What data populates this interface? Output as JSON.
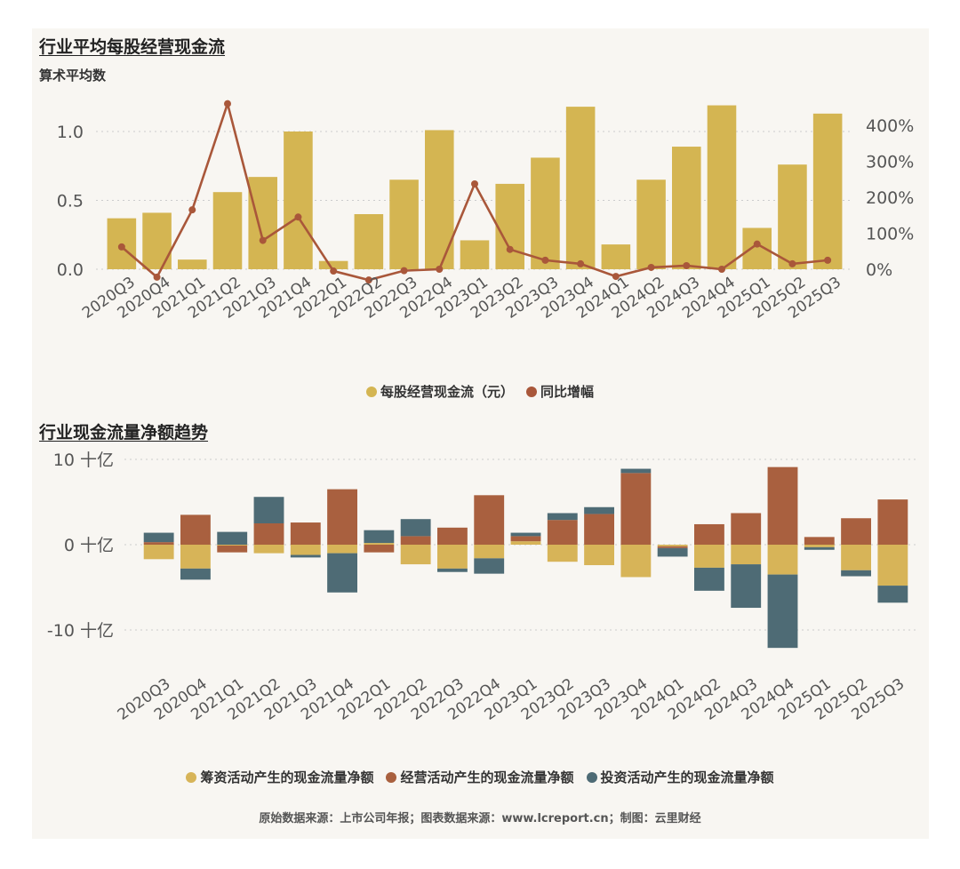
{
  "colors": {
    "bar_gold": "#d4b552",
    "line_brown": "#a9573a",
    "financing": "#d7b458",
    "operating": "#a9603f",
    "investing": "#4e6b75",
    "grid": "#cccccc",
    "panel_bg": "#f8f6f2"
  },
  "chart_data": [
    {
      "type": "bar",
      "title": "行业平均每股经营现金流",
      "subtitle": "算术平均数",
      "categories": [
        "2020Q3",
        "2020Q4",
        "2021Q1",
        "2021Q2",
        "2021Q3",
        "2021Q4",
        "2022Q1",
        "2022Q2",
        "2022Q3",
        "2022Q4",
        "2023Q1",
        "2023Q2",
        "2023Q3",
        "2023Q4",
        "2024Q1",
        "2024Q2",
        "2024Q3",
        "2024Q4",
        "2025Q1",
        "2025Q2",
        "2025Q3"
      ],
      "series": [
        {
          "name": "每股经营现金流（元）",
          "type": "bar",
          "axis": "left",
          "values": [
            0.37,
            0.41,
            0.07,
            0.56,
            0.67,
            1.0,
            0.06,
            0.4,
            0.65,
            1.01,
            0.21,
            0.62,
            0.81,
            1.18,
            0.18,
            0.65,
            0.89,
            1.19,
            0.3,
            0.76,
            1.13
          ]
        },
        {
          "name": "同比增幅",
          "type": "line",
          "axis": "right",
          "unit": "%",
          "values": [
            62,
            -22,
            165,
            460,
            80,
            145,
            -5,
            -30,
            -4,
            0,
            237,
            55,
            25,
            15,
            -20,
            5,
            10,
            0,
            70,
            15,
            25
          ]
        }
      ],
      "y_left": {
        "ticks": [
          "0.0",
          "0.5",
          "1.0"
        ],
        "tick_values": [
          0,
          0.5,
          1.0
        ],
        "range": [
          -0.06,
          1.25
        ]
      },
      "y_right": {
        "ticks": [
          "0%",
          "100%",
          "200%",
          "300%",
          "400%"
        ],
        "tick_values": [
          0,
          100,
          200,
          300,
          400
        ]
      },
      "legend": [
        {
          "label": "每股经营现金流（元）",
          "color": "#d4b552"
        },
        {
          "label": "同比增幅",
          "color": "#a9573a"
        }
      ]
    },
    {
      "type": "bar",
      "stacked": true,
      "title": "行业现金流量净额趋势",
      "categories": [
        "2020Q3",
        "2020Q4",
        "2021Q1",
        "2021Q2",
        "2021Q3",
        "2021Q4",
        "2022Q1",
        "2022Q2",
        "2022Q3",
        "2022Q4",
        "2023Q1",
        "2023Q2",
        "2023Q3",
        "2023Q4",
        "2024Q1",
        "2024Q2",
        "2024Q3",
        "2024Q4",
        "2025Q1",
        "2025Q2",
        "2025Q3"
      ],
      "unit": "十亿",
      "series": [
        {
          "name": "筹资活动产生的现金流量净额",
          "values": [
            -1.7,
            -2.8,
            -0.1,
            -1.0,
            -1.2,
            -1.0,
            0.2,
            -2.3,
            -2.8,
            -1.6,
            0.4,
            -2.0,
            -2.4,
            -3.8,
            -0.2,
            -2.7,
            -2.3,
            -3.5,
            -0.3,
            -3.0,
            -4.8
          ]
        },
        {
          "name": "经营活动产生的现金流量净额",
          "values": [
            0.3,
            3.5,
            -0.8,
            2.5,
            2.6,
            6.5,
            -0.9,
            1.0,
            2.0,
            5.8,
            0.6,
            2.9,
            3.6,
            8.4,
            -0.2,
            2.4,
            3.7,
            9.1,
            0.9,
            3.1,
            5.3
          ]
        },
        {
          "name": "投资活动产生的现金流量净额",
          "values": [
            1.1,
            -1.3,
            1.5,
            3.1,
            -0.3,
            -4.6,
            1.5,
            2.0,
            -0.4,
            -1.8,
            0.4,
            0.8,
            0.8,
            0.5,
            -1.0,
            -2.7,
            -5.1,
            -8.6,
            -0.3,
            -0.7,
            -2.0
          ]
        }
      ],
      "y_axis": {
        "ticks": [
          "10 十亿",
          "0 十亿",
          "-10 十亿"
        ],
        "tick_values": [
          10,
          0,
          -10
        ],
        "range": [
          -13,
          10.5
        ]
      },
      "legend": [
        {
          "label": "筹资活动产生的现金流量净额",
          "color": "#d7b458"
        },
        {
          "label": "经营活动产生的现金流量净额",
          "color": "#a9603f"
        },
        {
          "label": "投资活动产生的现金流量净额",
          "color": "#4e6b75"
        }
      ]
    }
  ],
  "footer": "原始数据来源：上市公司年报；图表数据来源：www.lcreport.cn；制图：云里财经"
}
